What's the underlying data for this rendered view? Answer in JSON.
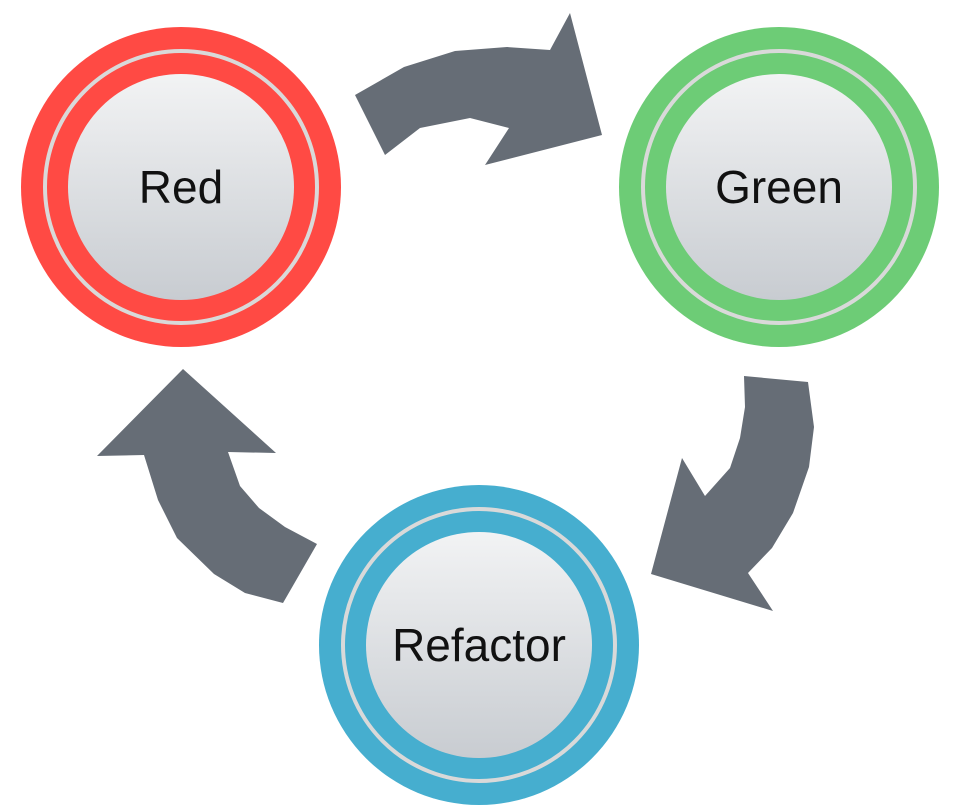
{
  "diagram": {
    "nodes": [
      {
        "id": "red",
        "label": "Red",
        "ring_color": "#ff4a44"
      },
      {
        "id": "green",
        "label": "Green",
        "ring_color": "#6dcc76"
      },
      {
        "id": "refactor",
        "label": "Refactor",
        "ring_color": "#46aecf"
      }
    ],
    "arrow_color": "#666d76",
    "core_gradient": [
      "#f2f3f4",
      "#c8ccd1"
    ],
    "inner_line_color": "#d9d9d9",
    "cycle": [
      "red",
      "green",
      "refactor",
      "red"
    ]
  }
}
